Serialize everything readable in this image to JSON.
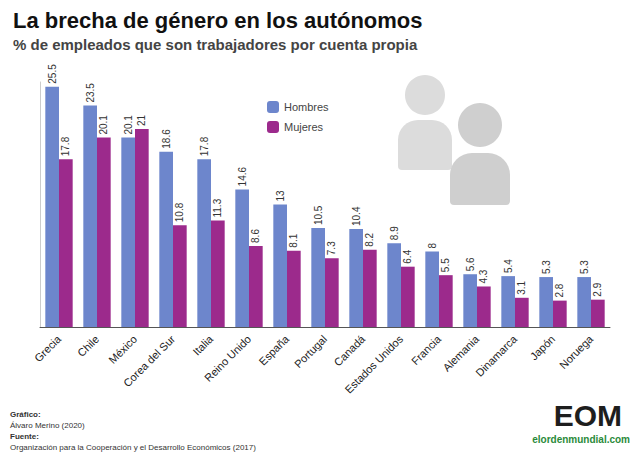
{
  "chart_data": {
    "type": "bar",
    "title": "La brecha de género en los autónomos",
    "subtitle": "% de empleados que son trabajadores por cuenta propia",
    "categories": [
      "Grecia",
      "Chile",
      "México",
      "Corea del Sur",
      "Italia",
      "Reino Unido",
      "España",
      "Portugal",
      "Canadá",
      "Estados Unidos",
      "Francia",
      "Alemania",
      "Dinamarca",
      "Japón",
      "Noruega"
    ],
    "series": [
      {
        "name": "Hombres",
        "color": "#6d86cc",
        "values": [
          25.5,
          23.5,
          20.1,
          18.6,
          17.8,
          14.6,
          13,
          10.5,
          10.4,
          8.9,
          8,
          5.6,
          5.4,
          5.3,
          5.3
        ]
      },
      {
        "name": "Mujeres",
        "color": "#9c2a8c",
        "values": [
          17.8,
          20.1,
          21,
          10.8,
          11.3,
          8.6,
          8.1,
          7.3,
          8.2,
          6.4,
          5.5,
          4.3,
          3.1,
          2.8,
          2.9
        ]
      }
    ],
    "ylim": [
      0,
      26
    ],
    "grid": false,
    "legend": "top",
    "data_labels": true,
    "tick_labels": "x",
    "annotations": [
      "Gráfico:",
      "Álvaro Merino (2020)",
      "Fuente:",
      "Organización para la Cooperación y el Desarrollo Económicos (2017)",
      "EOM",
      "elordenmundial.com"
    ]
  }
}
